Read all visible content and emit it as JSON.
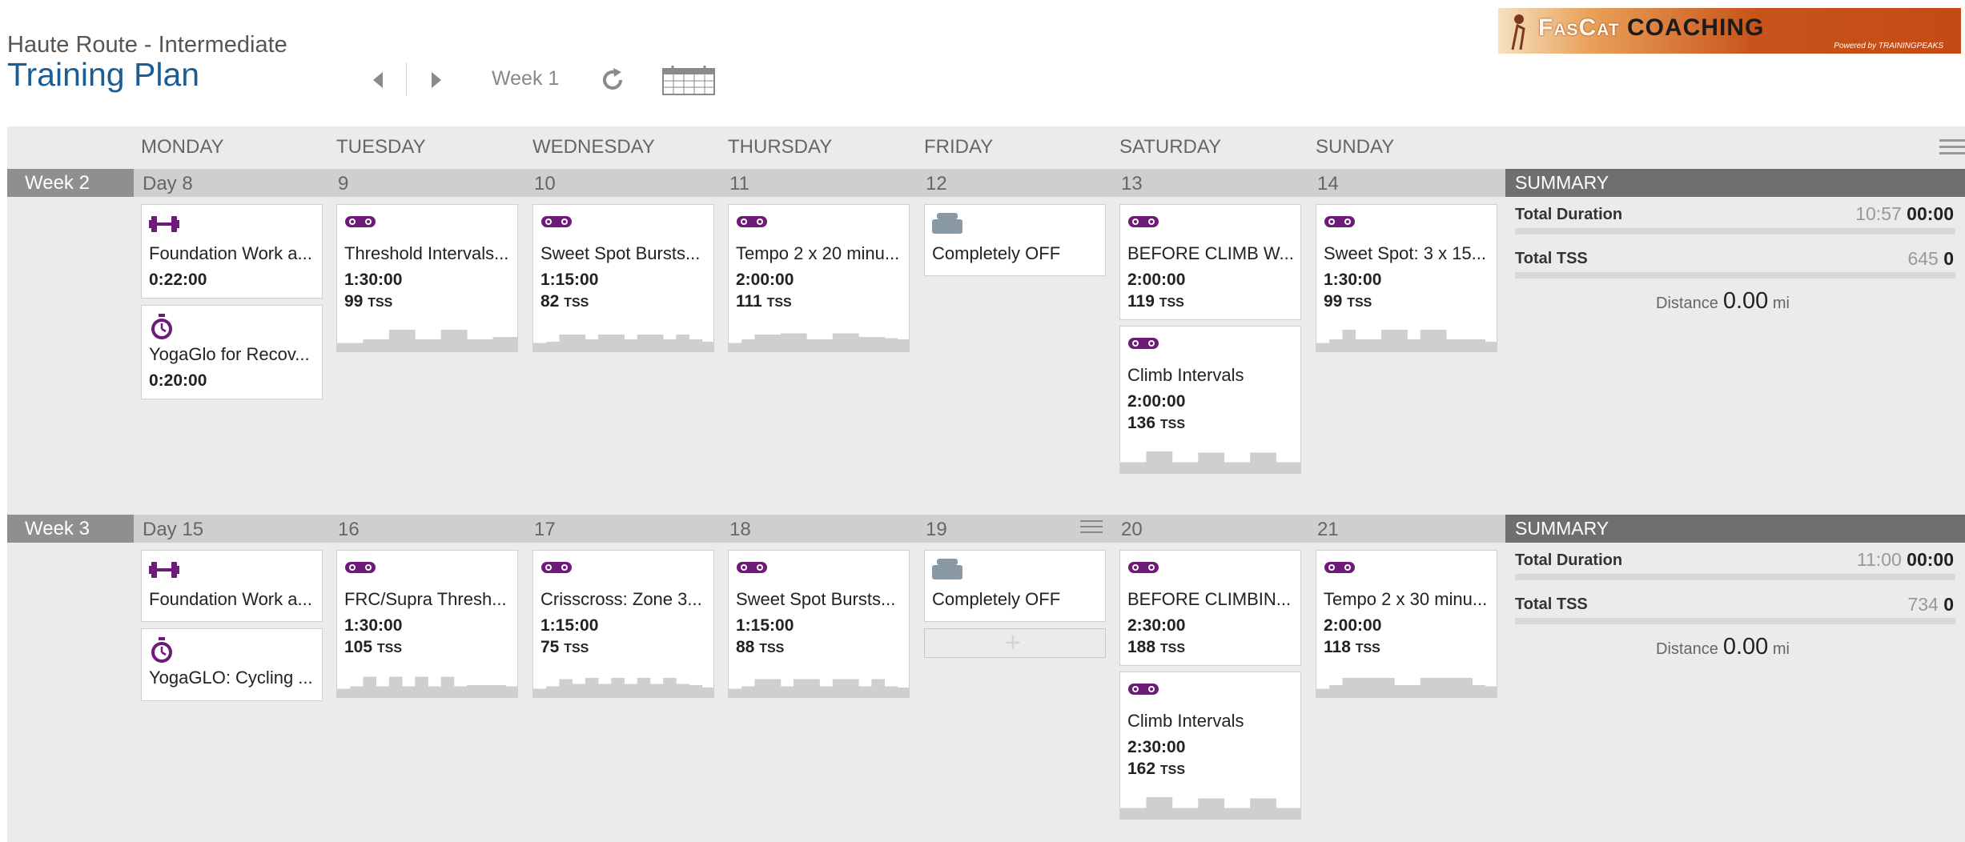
{
  "header": {
    "plan_name": "Haute Route - Intermediate",
    "title": "Training Plan",
    "week_label": "Week 1"
  },
  "logo": {
    "first_word": "FasCat",
    "second_word": "COACHING",
    "powered_by": "Powered by TRAININGPEAKS"
  },
  "days": [
    "MONDAY",
    "TUESDAY",
    "WEDNESDAY",
    "THURSDAY",
    "FRIDAY",
    "SATURDAY",
    "SUNDAY"
  ],
  "summary_label": "SUMMARY",
  "summary_fields": {
    "duration": "Total Duration",
    "tss": "Total TSS",
    "distance": "Distance",
    "distance_unit": "mi"
  },
  "colors": {
    "accent": "#1a5d95",
    "workout_icon": "#6e1a78",
    "off_icon": "#8a9aa5",
    "week_tag": "#8f8f8f",
    "summary_tag": "#6f6f6f"
  },
  "weeks": [
    {
      "label": "Week 2",
      "day_numbers": [
        "Day 8",
        "9",
        "10",
        "11",
        "12",
        "13",
        "14"
      ],
      "summary": {
        "duration_planned": "10:57",
        "duration_done": "00:00",
        "tss_planned": "645",
        "tss_done": "0",
        "distance": "0.00"
      },
      "cards": [
        {
          "day": 0,
          "slot": 0,
          "icon": "dumbbell-icon",
          "title": "Foundation Work a...",
          "duration": "0:22:00"
        },
        {
          "day": 0,
          "slot": 1,
          "icon": "stopwatch-icon",
          "title": "YogaGlo for Recov...",
          "duration": "0:20:00"
        },
        {
          "day": 1,
          "slot": 0,
          "icon": "bike-icon",
          "title": "Threshold Intervals...",
          "duration": "1:30:00",
          "tss": "99",
          "profile": [
            0.35,
            0.35,
            0.5,
            0.5,
            0.9,
            0.9,
            0.5,
            0.5,
            0.9,
            0.9,
            0.5,
            0.5,
            0.6,
            0.6
          ]
        },
        {
          "day": 2,
          "slot": 0,
          "icon": "bike-icon",
          "title": "Sweet Spot Bursts...",
          "duration": "1:15:00",
          "tss": "82",
          "profile": [
            0.35,
            0.4,
            0.7,
            0.7,
            0.5,
            0.7,
            0.7,
            0.5,
            0.7,
            0.7,
            0.5,
            0.7,
            0.5,
            0.4
          ]
        },
        {
          "day": 3,
          "slot": 0,
          "icon": "bike-icon",
          "title": "Tempo 2 x 20 minu...",
          "duration": "2:00:00",
          "tss": "111",
          "profile": [
            0.35,
            0.5,
            0.7,
            0.7,
            0.75,
            0.75,
            0.5,
            0.5,
            0.75,
            0.75,
            0.6,
            0.6,
            0.55,
            0.5
          ]
        },
        {
          "day": 4,
          "slot": 0,
          "icon": "off-icon",
          "title": "Completely OFF"
        },
        {
          "day": 5,
          "slot": 0,
          "icon": "bike-icon",
          "title": "BEFORE CLIMB W...",
          "duration": "2:00:00",
          "tss": "119"
        },
        {
          "day": 5,
          "slot": 1,
          "icon": "bike-icon",
          "title": "Climb Intervals",
          "duration": "2:00:00",
          "tss": "136",
          "profile": [
            0.45,
            0.45,
            0.9,
            0.9,
            0.45,
            0.45,
            0.85,
            0.85,
            0.45,
            0.45,
            0.85,
            0.85,
            0.45,
            0.45
          ]
        },
        {
          "day": 6,
          "slot": 0,
          "icon": "bike-icon",
          "title": "Sweet Spot: 3 x 15...",
          "duration": "1:30:00",
          "tss": "99",
          "profile": [
            0.35,
            0.5,
            0.9,
            0.5,
            0.5,
            0.9,
            0.9,
            0.5,
            0.9,
            0.9,
            0.5,
            0.5,
            0.5,
            0.4
          ]
        }
      ]
    },
    {
      "label": "Week 3",
      "day_numbers": [
        "Day 15",
        "16",
        "17",
        "18",
        "19",
        "20",
        "21"
      ],
      "summary": {
        "duration_planned": "11:00",
        "duration_done": "00:00",
        "tss_planned": "734",
        "tss_done": "0",
        "distance": "0.00"
      },
      "cards": [
        {
          "day": 0,
          "slot": 0,
          "icon": "dumbbell-icon",
          "title": "Foundation Work a..."
        },
        {
          "day": 0,
          "slot": 1,
          "icon": "stopwatch-icon",
          "title": "YogaGLO: Cycling ..."
        },
        {
          "day": 1,
          "slot": 0,
          "icon": "bike-icon",
          "title": "FRC/Supra Thresh...",
          "duration": "1:30:00",
          "tss": "105",
          "profile": [
            0.35,
            0.45,
            0.85,
            0.45,
            0.85,
            0.45,
            0.85,
            0.45,
            0.85,
            0.45,
            0.5,
            0.5,
            0.5,
            0.45
          ]
        },
        {
          "day": 2,
          "slot": 0,
          "icon": "bike-icon",
          "title": "Crisscross: Zone 3...",
          "duration": "1:15:00",
          "tss": "75",
          "profile": [
            0.35,
            0.45,
            0.75,
            0.55,
            0.8,
            0.55,
            0.8,
            0.55,
            0.8,
            0.55,
            0.8,
            0.55,
            0.5,
            0.4
          ]
        },
        {
          "day": 3,
          "slot": 0,
          "icon": "bike-icon",
          "title": "Sweet Spot Bursts...",
          "duration": "1:15:00",
          "tss": "88",
          "profile": [
            0.35,
            0.45,
            0.75,
            0.75,
            0.45,
            0.75,
            0.75,
            0.45,
            0.75,
            0.75,
            0.45,
            0.75,
            0.45,
            0.4
          ]
        },
        {
          "day": 4,
          "slot": 0,
          "icon": "off-icon",
          "title": "Completely OFF"
        },
        {
          "day": 5,
          "slot": 0,
          "icon": "bike-icon",
          "title": "BEFORE CLIMBIN...",
          "duration": "2:30:00",
          "tss": "188"
        },
        {
          "day": 5,
          "slot": 1,
          "icon": "bike-icon",
          "title": "Climb Intervals",
          "duration": "2:30:00",
          "tss": "162",
          "profile": [
            0.45,
            0.45,
            0.9,
            0.9,
            0.45,
            0.45,
            0.85,
            0.85,
            0.45,
            0.45,
            0.85,
            0.85,
            0.45,
            0.45
          ]
        },
        {
          "day": 6,
          "slot": 0,
          "icon": "bike-icon",
          "title": "Tempo 2 x 30 minu...",
          "duration": "2:00:00",
          "tss": "118",
          "profile": [
            0.35,
            0.5,
            0.8,
            0.8,
            0.8,
            0.8,
            0.5,
            0.5,
            0.8,
            0.8,
            0.8,
            0.8,
            0.5,
            0.45
          ]
        }
      ]
    }
  ]
}
